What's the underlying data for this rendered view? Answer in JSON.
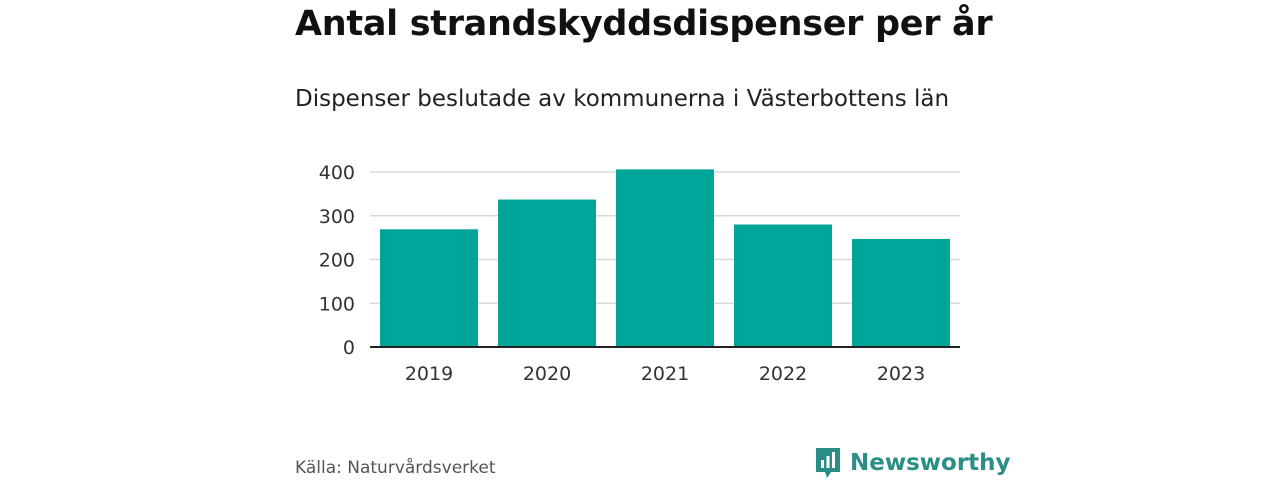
{
  "chart_data": {
    "type": "bar",
    "title": "Antal strandskyddsdispenser per år",
    "subtitle": "Dispenser beslutade av kommunerna i Västerbottens län",
    "categories": [
      "2019",
      "2020",
      "2021",
      "2022",
      "2023"
    ],
    "values": [
      269,
      337,
      406,
      280,
      247
    ],
    "ylim": [
      0,
      400
    ],
    "yticks": [
      0,
      100,
      200,
      300,
      400
    ],
    "grid": true,
    "bar_color": "#00a599",
    "source": "Källa: Naturvårdsverket"
  },
  "brand": {
    "name": "Newsworthy",
    "icon": "newsworthy-logo-icon",
    "color": "#2a8d86"
  }
}
